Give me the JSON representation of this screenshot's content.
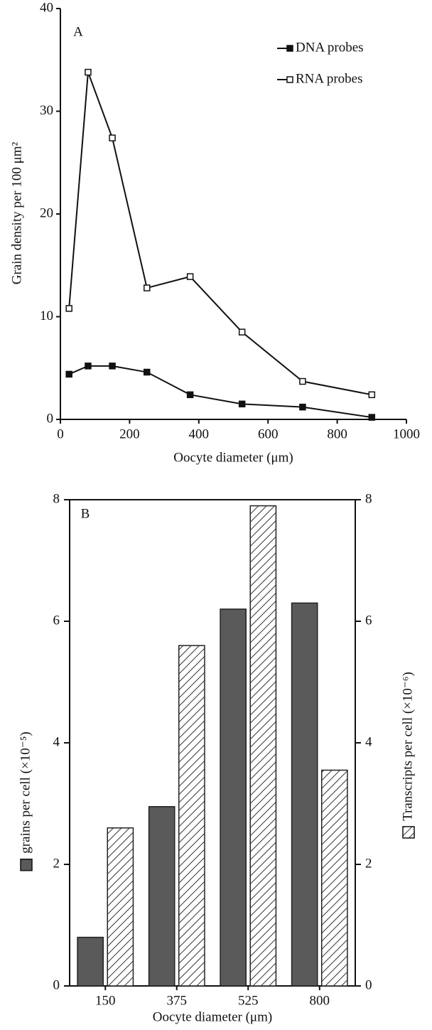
{
  "chart_data": [
    {
      "type": "line",
      "panel": "A",
      "x": [
        25,
        80,
        150,
        250,
        375,
        525,
        700,
        900
      ],
      "xlim": [
        0,
        1000
      ],
      "xticks": [
        0,
        200,
        400,
        600,
        800,
        1000
      ],
      "ylim": [
        0,
        40
      ],
      "yticks": [
        0,
        10,
        20,
        30,
        40
      ],
      "x_label": "Oocyte diameter (μm)",
      "y_label": "Grain density per 100 μm²",
      "legend": "upper right",
      "series": [
        {
          "name": "DNA probes",
          "color": "#111111",
          "marker": "filled",
          "values": [
            4.4,
            5.2,
            5.2,
            4.6,
            2.4,
            1.5,
            1.2,
            0.2
          ]
        },
        {
          "name": "RNA probes",
          "color": "#111111",
          "marker": "open",
          "values": [
            10.8,
            33.8,
            27.4,
            12.8,
            13.9,
            8.5,
            3.7,
            2.4
          ]
        }
      ]
    },
    {
      "type": "bar",
      "panel": "B",
      "categories": [
        "150",
        "375",
        "525",
        "800"
      ],
      "ylim": [
        0,
        8
      ],
      "yticks": [
        0,
        2,
        4,
        6,
        8
      ],
      "y2lim": [
        0,
        8
      ],
      "y2ticks": [
        0,
        2,
        4,
        6,
        8
      ],
      "x_label": "Oocyte diameter (μm)",
      "series": [
        {
          "name": "grains per cell (×10⁻⁵)",
          "color": "#5a5a5a",
          "pattern": "solid",
          "values": [
            0.8,
            2.95,
            6.2,
            6.3
          ]
        },
        {
          "name": "Transcripts per cell (×10⁻⁶)",
          "color": "#333333",
          "pattern": "hatch",
          "axis": "y2",
          "values": [
            2.6,
            5.6,
            7.9,
            3.55
          ]
        }
      ]
    }
  ]
}
